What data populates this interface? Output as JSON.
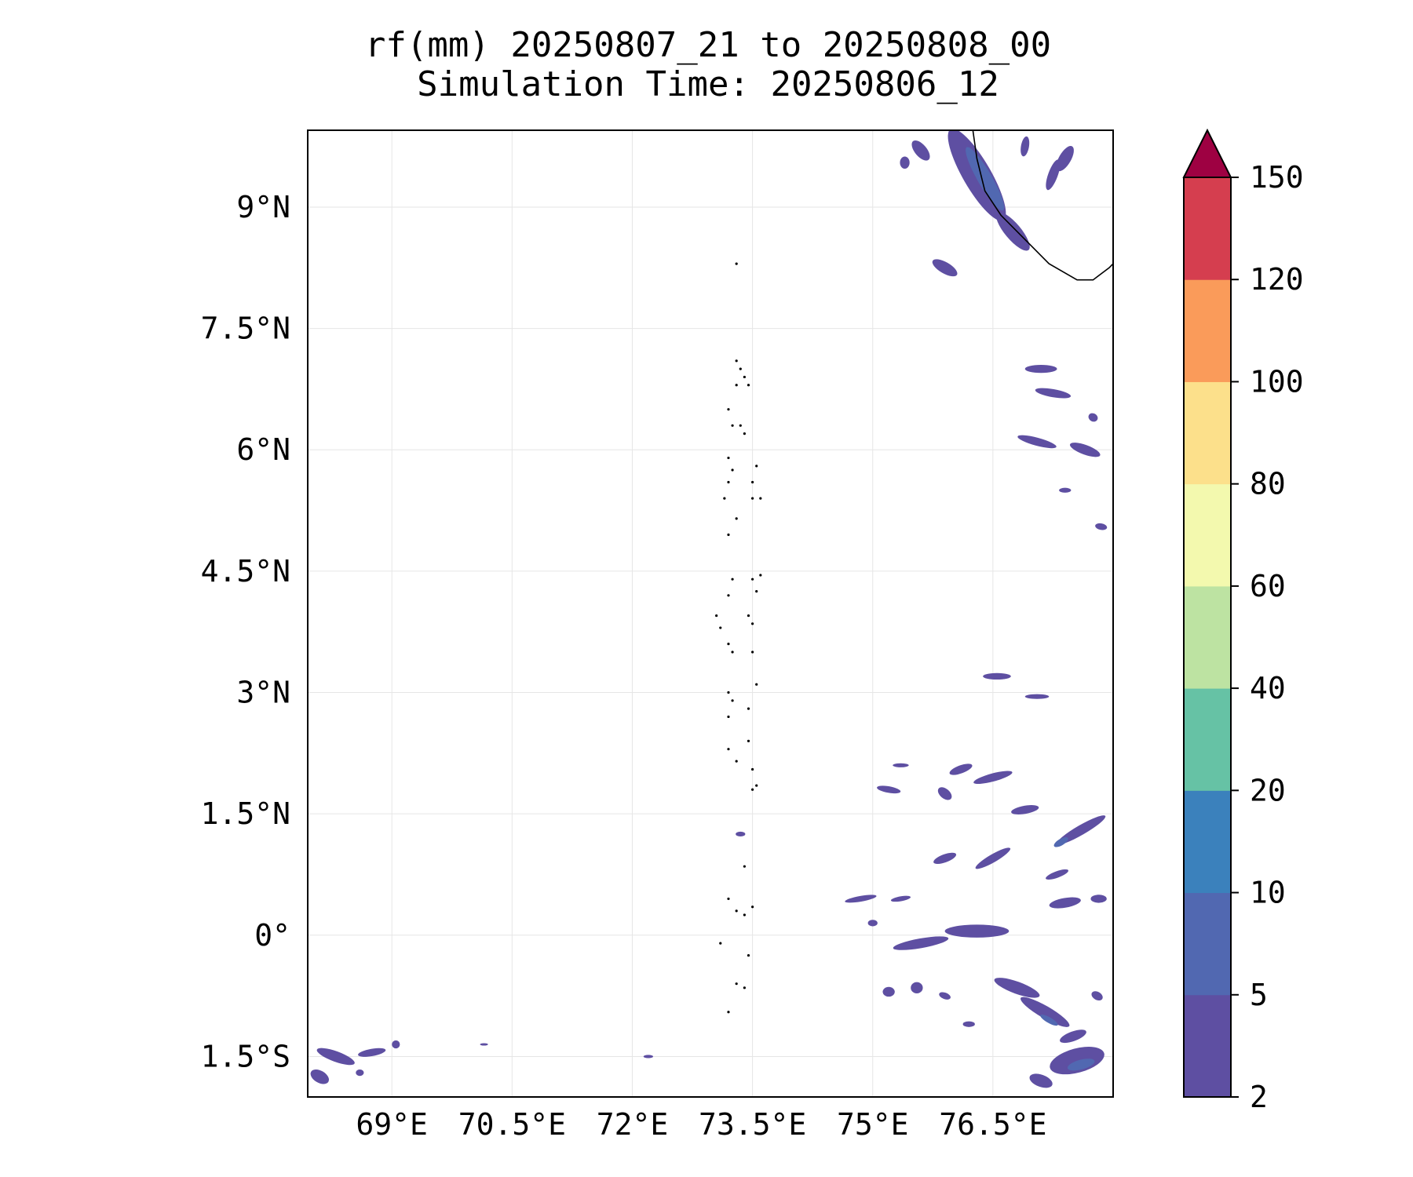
{
  "title": {
    "line1": "rf(mm) 20250807_21 to 20250808_00",
    "line2": "Simulation Time: 20250806_12"
  },
  "map": {
    "lon_range": [
      67.95,
      78.0
    ],
    "lat_range": [
      -2.0,
      9.95
    ],
    "lon_ticks": [
      {
        "value": 69.0,
        "label": "69°E"
      },
      {
        "value": 70.5,
        "label": "70.5°E"
      },
      {
        "value": 72.0,
        "label": "72°E"
      },
      {
        "value": 73.5,
        "label": "73.5°E"
      },
      {
        "value": 75.0,
        "label": "75°E"
      },
      {
        "value": 76.5,
        "label": "76.5°E"
      }
    ],
    "lat_ticks": [
      {
        "value": 9.0,
        "label": "9°N"
      },
      {
        "value": 7.5,
        "label": "7.5°N"
      },
      {
        "value": 6.0,
        "label": "6°N"
      },
      {
        "value": 4.5,
        "label": "4.5°N"
      },
      {
        "value": 3.0,
        "label": "3°N"
      },
      {
        "value": 1.5,
        "label": "1.5°N"
      },
      {
        "value": 0.0,
        "label": "0°"
      },
      {
        "value": -1.5,
        "label": "1.5°S"
      }
    ],
    "gridlines": true,
    "colors": {
      "coastline": "#000000",
      "grid": "#e6e6e6",
      "frame": "#000000"
    }
  },
  "colorbar": {
    "levels": [
      2,
      5,
      10,
      20,
      40,
      60,
      80,
      100,
      120,
      150
    ],
    "labels": [
      "2",
      "5",
      "10",
      "20",
      "40",
      "60",
      "80",
      "100",
      "120",
      "150"
    ],
    "colors": [
      "#5e4fa2",
      "#5168b1",
      "#3b81bc",
      "#66c2a5",
      "#bde3a2",
      "#f3f9ae",
      "#fce08b",
      "#fa9b5a",
      "#d53e4f"
    ],
    "extend_color": "#9e0142",
    "extend": "max"
  },
  "rain_cells": [
    {
      "lon": 76.3,
      "lat": 9.4,
      "w": 0.35,
      "h": 1.3,
      "rot": -30,
      "level": 0
    },
    {
      "lon": 76.4,
      "lat": 9.35,
      "w": 0.18,
      "h": 0.9,
      "rot": -30,
      "level": 1
    },
    {
      "lon": 76.75,
      "lat": 8.7,
      "w": 0.2,
      "h": 0.6,
      "rot": -40,
      "level": 0
    },
    {
      "lon": 77.4,
      "lat": 9.6,
      "w": 0.15,
      "h": 0.35,
      "rot": 30,
      "level": 0
    },
    {
      "lon": 77.25,
      "lat": 9.4,
      "w": 0.12,
      "h": 0.4,
      "rot": 20,
      "level": 0
    },
    {
      "lon": 76.9,
      "lat": 9.75,
      "w": 0.1,
      "h": 0.25,
      "rot": 10,
      "level": 0
    },
    {
      "lon": 75.6,
      "lat": 9.7,
      "w": 0.15,
      "h": 0.3,
      "rot": -40,
      "level": 0
    },
    {
      "lon": 75.4,
      "lat": 9.55,
      "w": 0.12,
      "h": 0.15,
      "rot": 0,
      "level": 0
    },
    {
      "lon": 75.9,
      "lat": 8.25,
      "w": 0.35,
      "h": 0.14,
      "rot": 30,
      "level": 0
    },
    {
      "lon": 77.1,
      "lat": 7.0,
      "w": 0.4,
      "h": 0.1,
      "rot": 0,
      "level": 0
    },
    {
      "lon": 77.25,
      "lat": 6.7,
      "w": 0.45,
      "h": 0.1,
      "rot": 10,
      "level": 0
    },
    {
      "lon": 77.05,
      "lat": 6.1,
      "w": 0.5,
      "h": 0.1,
      "rot": 15,
      "level": 0
    },
    {
      "lon": 77.65,
      "lat": 6.0,
      "w": 0.4,
      "h": 0.12,
      "rot": 20,
      "level": 0
    },
    {
      "lon": 77.75,
      "lat": 6.4,
      "w": 0.12,
      "h": 0.1,
      "rot": 30,
      "level": 0
    },
    {
      "lon": 77.85,
      "lat": 5.05,
      "w": 0.15,
      "h": 0.08,
      "rot": 10,
      "level": 0
    },
    {
      "lon": 77.4,
      "lat": 5.5,
      "w": 0.15,
      "h": 0.06,
      "rot": 0,
      "level": 0
    },
    {
      "lon": 76.55,
      "lat": 3.2,
      "w": 0.35,
      "h": 0.08,
      "rot": 0,
      "level": 0
    },
    {
      "lon": 77.05,
      "lat": 2.95,
      "w": 0.3,
      "h": 0.06,
      "rot": 0,
      "level": 0
    },
    {
      "lon": 76.1,
      "lat": 2.05,
      "w": 0.3,
      "h": 0.1,
      "rot": -20,
      "level": 0
    },
    {
      "lon": 76.5,
      "lat": 1.95,
      "w": 0.5,
      "h": 0.1,
      "rot": -15,
      "level": 0
    },
    {
      "lon": 75.9,
      "lat": 1.75,
      "w": 0.2,
      "h": 0.12,
      "rot": 40,
      "level": 0
    },
    {
      "lon": 76.9,
      "lat": 1.55,
      "w": 0.35,
      "h": 0.1,
      "rot": -10,
      "level": 0
    },
    {
      "lon": 77.6,
      "lat": 1.3,
      "w": 0.7,
      "h": 0.12,
      "rot": -30,
      "level": 0
    },
    {
      "lon": 77.35,
      "lat": 1.15,
      "w": 0.2,
      "h": 0.08,
      "rot": -30,
      "level": 1
    },
    {
      "lon": 76.5,
      "lat": 0.95,
      "w": 0.5,
      "h": 0.1,
      "rot": -30,
      "level": 0
    },
    {
      "lon": 75.9,
      "lat": 0.95,
      "w": 0.3,
      "h": 0.1,
      "rot": -20,
      "level": 0
    },
    {
      "lon": 75.2,
      "lat": 1.8,
      "w": 0.3,
      "h": 0.08,
      "rot": 10,
      "level": 0
    },
    {
      "lon": 75.35,
      "lat": 2.1,
      "w": 0.2,
      "h": 0.05,
      "rot": 0,
      "level": 0
    },
    {
      "lon": 77.3,
      "lat": 0.75,
      "w": 0.3,
      "h": 0.08,
      "rot": -20,
      "level": 0
    },
    {
      "lon": 77.4,
      "lat": 0.4,
      "w": 0.4,
      "h": 0.12,
      "rot": -10,
      "level": 0
    },
    {
      "lon": 77.82,
      "lat": 0.45,
      "w": 0.2,
      "h": 0.1,
      "rot": 0,
      "level": 0
    },
    {
      "lon": 76.3,
      "lat": 0.05,
      "w": 0.8,
      "h": 0.16,
      "rot": 0,
      "level": 0
    },
    {
      "lon": 75.6,
      "lat": -0.1,
      "w": 0.7,
      "h": 0.12,
      "rot": -10,
      "level": 0
    },
    {
      "lon": 74.85,
      "lat": 0.45,
      "w": 0.4,
      "h": 0.07,
      "rot": -10,
      "level": 0
    },
    {
      "lon": 75.35,
      "lat": 0.45,
      "w": 0.25,
      "h": 0.06,
      "rot": -10,
      "level": 0
    },
    {
      "lon": 75.0,
      "lat": 0.15,
      "w": 0.12,
      "h": 0.08,
      "rot": 0,
      "level": 0
    },
    {
      "lon": 76.8,
      "lat": -0.65,
      "w": 0.6,
      "h": 0.15,
      "rot": 20,
      "level": 0
    },
    {
      "lon": 77.15,
      "lat": -0.95,
      "w": 0.7,
      "h": 0.15,
      "rot": 30,
      "level": 0
    },
    {
      "lon": 77.2,
      "lat": -1.05,
      "w": 0.25,
      "h": 0.07,
      "rot": 30,
      "level": 1
    },
    {
      "lon": 77.5,
      "lat": -1.25,
      "w": 0.35,
      "h": 0.12,
      "rot": -20,
      "level": 0
    },
    {
      "lon": 77.55,
      "lat": -1.55,
      "w": 0.7,
      "h": 0.3,
      "rot": -15,
      "level": 0
    },
    {
      "lon": 77.6,
      "lat": -1.6,
      "w": 0.35,
      "h": 0.12,
      "rot": -15,
      "level": 1
    },
    {
      "lon": 77.1,
      "lat": -1.8,
      "w": 0.3,
      "h": 0.15,
      "rot": 20,
      "level": 0
    },
    {
      "lon": 77.8,
      "lat": -0.75,
      "w": 0.15,
      "h": 0.1,
      "rot": 30,
      "level": 0
    },
    {
      "lon": 75.2,
      "lat": -0.7,
      "w": 0.15,
      "h": 0.12,
      "rot": 0,
      "level": 0
    },
    {
      "lon": 75.55,
      "lat": -0.65,
      "w": 0.15,
      "h": 0.14,
      "rot": 0,
      "level": 0
    },
    {
      "lon": 75.9,
      "lat": -0.75,
      "w": 0.15,
      "h": 0.08,
      "rot": 20,
      "level": 0
    },
    {
      "lon": 76.2,
      "lat": -1.1,
      "w": 0.15,
      "h": 0.07,
      "rot": 0,
      "level": 0
    },
    {
      "lon": 68.3,
      "lat": -1.5,
      "w": 0.5,
      "h": 0.13,
      "rot": 20,
      "level": 0
    },
    {
      "lon": 68.1,
      "lat": -1.75,
      "w": 0.25,
      "h": 0.15,
      "rot": 30,
      "level": 0
    },
    {
      "lon": 68.75,
      "lat": -1.45,
      "w": 0.35,
      "h": 0.09,
      "rot": -10,
      "level": 0
    },
    {
      "lon": 69.05,
      "lat": -1.35,
      "w": 0.1,
      "h": 0.1,
      "rot": 0,
      "level": 0
    },
    {
      "lon": 68.6,
      "lat": -1.7,
      "w": 0.1,
      "h": 0.08,
      "rot": 0,
      "level": 0
    },
    {
      "lon": 73.35,
      "lat": 1.25,
      "w": 0.12,
      "h": 0.06,
      "rot": 0,
      "level": 0
    },
    {
      "lon": 70.15,
      "lat": -1.35,
      "w": 0.1,
      "h": 0.03,
      "rot": 0,
      "level": 0
    },
    {
      "lon": 72.2,
      "lat": -1.5,
      "w": 0.12,
      "h": 0.04,
      "rot": 0,
      "level": 0
    }
  ],
  "coastline": {
    "india": [
      [
        76.25,
        9.95
      ],
      [
        76.3,
        9.6
      ],
      [
        76.4,
        9.2
      ],
      [
        76.6,
        8.9
      ],
      [
        76.9,
        8.6
      ],
      [
        77.2,
        8.3
      ],
      [
        77.55,
        8.1
      ],
      [
        77.75,
        8.1
      ],
      [
        77.95,
        8.25
      ],
      [
        78.0,
        8.3
      ]
    ],
    "islands": [
      [
        73.3,
        7.1
      ],
      [
        73.35,
        7.0
      ],
      [
        73.4,
        6.9
      ],
      [
        73.3,
        6.8
      ],
      [
        73.45,
        6.8
      ],
      [
        73.2,
        6.5
      ],
      [
        73.25,
        6.3
      ],
      [
        73.35,
        6.3
      ],
      [
        73.4,
        6.2
      ],
      [
        73.2,
        5.9
      ],
      [
        73.25,
        5.75
      ],
      [
        73.2,
        5.6
      ],
      [
        73.55,
        5.8
      ],
      [
        73.5,
        5.6
      ],
      [
        73.6,
        5.4
      ],
      [
        73.5,
        5.4
      ],
      [
        73.15,
        5.4
      ],
      [
        73.3,
        5.15
      ],
      [
        73.2,
        4.95
      ],
      [
        73.6,
        4.45
      ],
      [
        73.5,
        4.4
      ],
      [
        73.25,
        4.4
      ],
      [
        73.2,
        4.2
      ],
      [
        73.55,
        4.25
      ],
      [
        73.45,
        3.95
      ],
      [
        73.5,
        3.85
      ],
      [
        73.05,
        3.95
      ],
      [
        73.1,
        3.8
      ],
      [
        73.25,
        3.5
      ],
      [
        73.2,
        3.6
      ],
      [
        73.5,
        3.5
      ],
      [
        73.55,
        3.1
      ],
      [
        73.2,
        3.0
      ],
      [
        73.25,
        2.9
      ],
      [
        73.45,
        2.8
      ],
      [
        73.2,
        2.7
      ],
      [
        73.45,
        2.4
      ],
      [
        73.2,
        2.3
      ],
      [
        73.3,
        2.15
      ],
      [
        73.5,
        2.05
      ],
      [
        73.55,
        1.85
      ],
      [
        73.5,
        1.8
      ],
      [
        73.4,
        0.85
      ],
      [
        73.2,
        0.45
      ],
      [
        73.3,
        0.3
      ],
      [
        73.4,
        0.25
      ],
      [
        73.5,
        0.35
      ],
      [
        73.1,
        -0.1
      ],
      [
        73.45,
        -0.25
      ],
      [
        73.3,
        -0.6
      ],
      [
        73.4,
        -0.65
      ],
      [
        73.2,
        -0.95
      ],
      [
        73.3,
        8.3
      ]
    ]
  }
}
